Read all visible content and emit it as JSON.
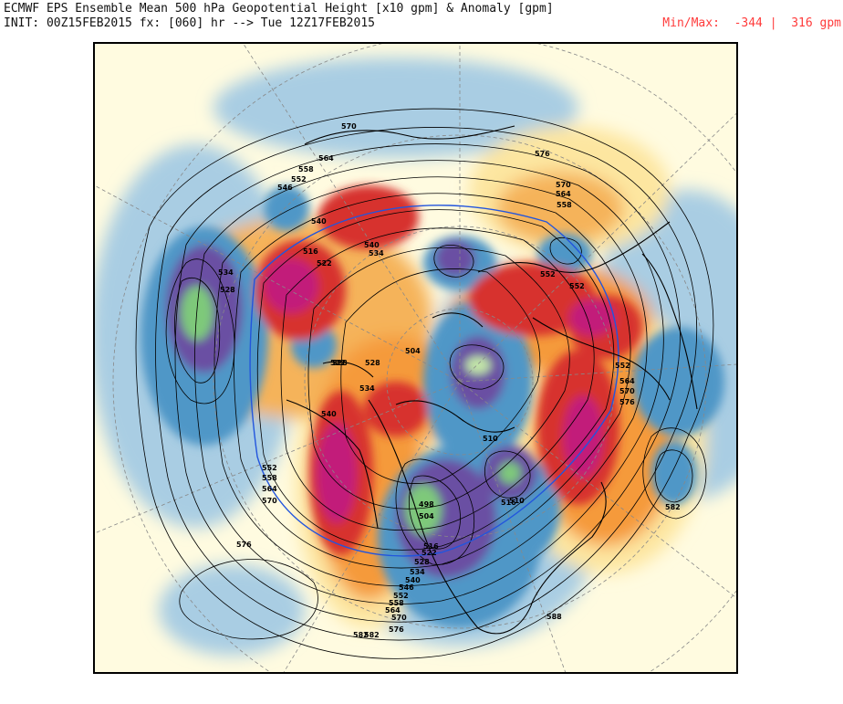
{
  "header": {
    "title_line": "ECMWF EPS Ensemble Mean 500 hPa Geopotential Height [x10 gpm] & Anomaly [gpm]",
    "init_line": "INIT: 00Z15FEB2015 fx: [060] hr --> Tue 12Z17FEB2015",
    "minmax_label": "Min/Max:",
    "min_value": "-344",
    "separator": "|",
    "max_value": "316 gpm"
  },
  "colors": {
    "background": "#fffbe0",
    "neg_light": "#a9cde3",
    "neg_mid": "#4f97c7",
    "neg_deep": "#6a4fa3",
    "neg_core": "#7ec97a",
    "pos_light": "#fde6a0",
    "pos_mid": "#f59a3b",
    "pos_deep": "#d7322f",
    "pos_core": "#c21f7a",
    "contour": "#000000",
    "contour_540": "#2255dd",
    "coastline": "#000000",
    "graticule": "#888888"
  },
  "contour_labels": [
    "570",
    "564",
    "576",
    "558",
    "552",
    "546",
    "540",
    "534",
    "528",
    "522",
    "516",
    "570",
    "564",
    "558",
    "552",
    "540",
    "534",
    "528",
    "504",
    "510",
    "522",
    "528",
    "534",
    "540",
    "552",
    "558",
    "564",
    "570",
    "576",
    "552",
    "498",
    "504",
    "516",
    "510",
    "516",
    "522",
    "528",
    "534",
    "540",
    "546",
    "552",
    "558",
    "564",
    "570",
    "576",
    "582",
    "588",
    "582",
    "576",
    "570",
    "564",
    "552",
    "582"
  ]
}
